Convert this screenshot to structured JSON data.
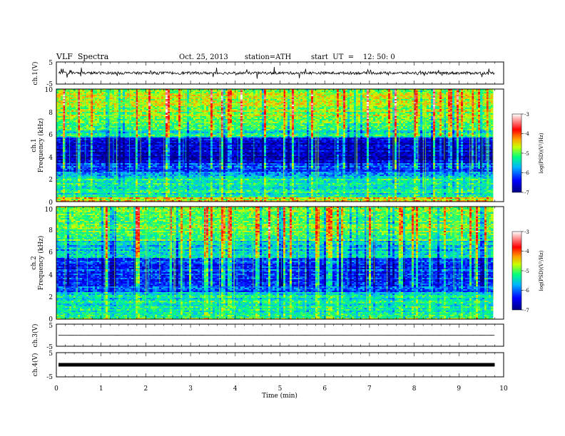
{
  "header": {
    "title": "VLF  Spectra",
    "date": "Oct. 25, 2013",
    "station": "station=ATH",
    "start": "start  UT  =    12: 50: 0"
  },
  "xaxis": {
    "label": "Time  (min)",
    "ticks": [
      "0",
      "1",
      "2",
      "3",
      "4",
      "5",
      "6",
      "7",
      "8",
      "9",
      "10"
    ]
  },
  "panels": {
    "ch1_wave": {
      "label": "ch.1(V)",
      "ticks": [
        "5",
        "-5"
      ]
    },
    "ch1_spec": {
      "label": "ch.1",
      "sublabel": "Frequency  (kHz)",
      "ticks": [
        "10",
        "8",
        "6",
        "4",
        "2",
        "0"
      ]
    },
    "ch2_spec": {
      "label": "ch.2",
      "sublabel": "Frequency  (kHz)",
      "ticks": [
        "10",
        "8",
        "6",
        "4",
        "2",
        "0"
      ]
    },
    "ch3_wave": {
      "label": "ch.3(V)",
      "ticks": [
        "5",
        "-5"
      ]
    },
    "ch4_wave": {
      "label": "ch.4(V)",
      "ticks": [
        "5",
        "-5"
      ]
    }
  },
  "colorbar": {
    "label": "log(PSD)(V²/Hz)",
    "ticks": [
      "-3",
      "-4",
      "-5",
      "-6",
      "-7"
    ]
  },
  "chart_data": [
    {
      "type": "line",
      "name": "ch1-waveform",
      "xlim": [
        0,
        10
      ],
      "data_x_end": 9.8,
      "ylim": [
        -5,
        5
      ],
      "baseline": 0,
      "amplitude_typical": 1.2
    },
    {
      "type": "heatmap",
      "name": "ch1-spectrogram",
      "xlim": [
        0,
        10
      ],
      "ylim": [
        0,
        10
      ],
      "zlim": [
        -7,
        -3
      ],
      "bands": [
        {
          "f0": 0,
          "f1": 0.5,
          "level": -4.6
        },
        {
          "f0": 0.5,
          "f1": 2.3,
          "level": -5.4
        },
        {
          "f0": 2.3,
          "f1": 3.5,
          "level": -6.1
        },
        {
          "f0": 3.5,
          "f1": 5.7,
          "level": -6.7
        },
        {
          "f0": 5.7,
          "f1": 7.0,
          "level": -5.3
        },
        {
          "f0": 7.0,
          "f1": 10,
          "level": -4.8
        }
      ]
    },
    {
      "type": "heatmap",
      "name": "ch2-spectrogram",
      "xlim": [
        0,
        10
      ],
      "ylim": [
        0,
        10
      ],
      "zlim": [
        -7,
        -3
      ],
      "bands": [
        {
          "f0": 0,
          "f1": 0.5,
          "level": -5.2
        },
        {
          "f0": 0.5,
          "f1": 2.5,
          "level": -5.4
        },
        {
          "f0": 2.5,
          "f1": 5.5,
          "level": -6.2
        },
        {
          "f0": 5.5,
          "f1": 7.0,
          "level": -5.6
        },
        {
          "f0": 7.0,
          "f1": 10,
          "level": -5.0
        }
      ]
    },
    {
      "type": "line",
      "name": "ch3-waveform",
      "xlim": [
        0,
        10
      ],
      "data_x_end": 9.8,
      "ylim": [
        -5,
        5
      ],
      "baseline": 0,
      "amplitude_typical": 0.05
    },
    {
      "type": "line",
      "name": "ch4-waveform",
      "xlim": [
        0,
        10
      ],
      "data_x_end": 9.8,
      "ylim": [
        -5,
        5
      ],
      "baseline": 0,
      "amplitude_typical": 0.4
    }
  ]
}
